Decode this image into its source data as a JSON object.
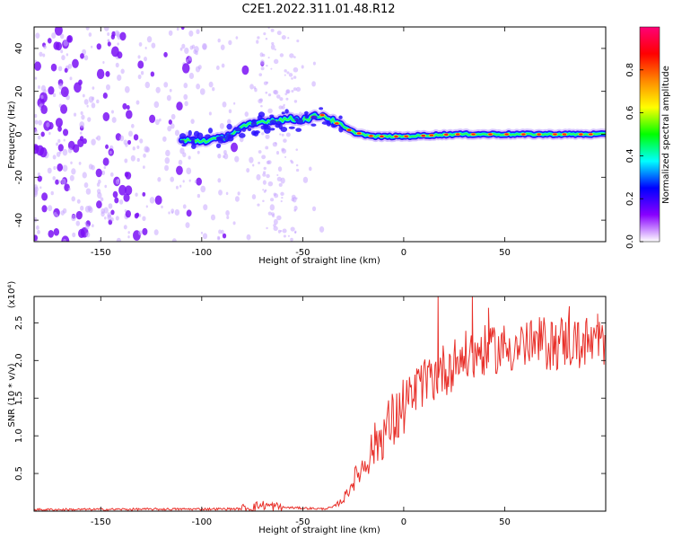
{
  "figure": {
    "title": "C2E1.2022.311.01.48.R12"
  },
  "chart_data": [
    {
      "type": "heatmap",
      "xlabel": "Height of straight line (km)",
      "ylabel": "Frequency (Hz)",
      "xlim": [
        -183,
        100
      ],
      "ylim": [
        -50,
        50
      ],
      "x_ticks": [
        -150,
        -100,
        -50,
        0,
        50
      ],
      "y_ticks": [
        -40,
        -20,
        0,
        20,
        40
      ],
      "x_tick_labels": [
        "-150",
        "-100",
        "-50",
        "0",
        "50"
      ],
      "y_tick_labels": [
        "-40",
        "-20",
        "0",
        "20",
        "40"
      ],
      "colorbar": {
        "label": "Normalized spectral amplitude",
        "range": [
          0,
          1
        ],
        "ticks": [
          0.0,
          0.2,
          0.4,
          0.6,
          0.8
        ],
        "tick_labels": [
          "0.0",
          "0.2",
          "0.4",
          "0.6",
          "0.8"
        ],
        "colors": [
          "#ffffff",
          "#8800ff",
          "#0000ff",
          "#00ffff",
          "#00ff00",
          "#ffff00",
          "#ff8800",
          "#ff0000",
          "#ff0077"
        ]
      },
      "signal_track": [
        {
          "x": -110,
          "f": -3
        },
        {
          "x": -100,
          "f": -3
        },
        {
          "x": -90,
          "f": -2
        },
        {
          "x": -80,
          "f": 3
        },
        {
          "x": -70,
          "f": 6
        },
        {
          "x": -60,
          "f": 7
        },
        {
          "x": -50,
          "f": 7
        },
        {
          "x": -40,
          "f": 9
        },
        {
          "x": -33,
          "f": 5
        },
        {
          "x": -25,
          "f": 1
        },
        {
          "x": -15,
          "f": -1
        },
        {
          "x": 0,
          "f": -1
        },
        {
          "x": 25,
          "f": 0
        },
        {
          "x": 50,
          "f": 0
        },
        {
          "x": 75,
          "f": 0
        },
        {
          "x": 100,
          "f": 0
        }
      ],
      "noise_region": [
        -183,
        -60
      ]
    },
    {
      "type": "line",
      "xlabel": "Height of straight line (km)",
      "ylabel": "SNR (10 * v/v)",
      "y_multiplier_label": "(x10⁴)",
      "xlim": [
        -183,
        100
      ],
      "ylim": [
        0,
        2.85
      ],
      "x_ticks": [
        -150,
        -100,
        -50,
        0,
        50
      ],
      "y_ticks": [
        0.5,
        1.0,
        1.5,
        2.0,
        2.5
      ],
      "x_tick_labels": [
        "-150",
        "-100",
        "-50",
        "0",
        "50"
      ],
      "y_tick_labels": [
        "0.5",
        "1.0",
        "1.5",
        "2.0",
        "2.5"
      ],
      "series": [
        {
          "color": "#e8302a",
          "trend": [
            {
              "x": -183,
              "y": 0.02
            },
            {
              "x": -80,
              "y": 0.03
            },
            {
              "x": -70,
              "y": 0.08
            },
            {
              "x": -60,
              "y": 0.05
            },
            {
              "x": -40,
              "y": 0.03
            },
            {
              "x": -35,
              "y": 0.05
            },
            {
              "x": -30,
              "y": 0.15
            },
            {
              "x": -25,
              "y": 0.4
            },
            {
              "x": -20,
              "y": 0.6
            },
            {
              "x": -15,
              "y": 0.85
            },
            {
              "x": -10,
              "y": 1.05
            },
            {
              "x": -5,
              "y": 1.2
            },
            {
              "x": 0,
              "y": 1.35
            },
            {
              "x": 5,
              "y": 1.55
            },
            {
              "x": 10,
              "y": 1.7
            },
            {
              "x": 18,
              "y": 1.85
            },
            {
              "x": 30,
              "y": 2.05
            },
            {
              "x": 45,
              "y": 2.15
            },
            {
              "x": 60,
              "y": 2.2
            },
            {
              "x": 80,
              "y": 2.25
            },
            {
              "x": 100,
              "y": 2.2
            }
          ],
          "peaks": [
            {
              "x": 17,
              "y": 2.85
            },
            {
              "x": 34,
              "y": 2.85
            },
            {
              "x": 42,
              "y": 2.7
            },
            {
              "x": 82,
              "y": 2.72
            },
            {
              "x": 96,
              "y": 2.62
            }
          ]
        }
      ]
    }
  ]
}
